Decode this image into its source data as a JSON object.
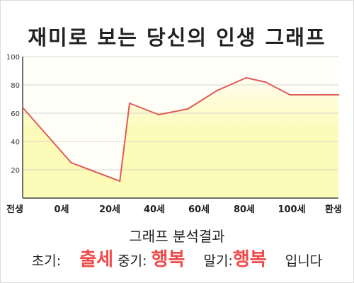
{
  "chart_data": {
    "type": "area",
    "title": "재미로 보는 당신의 인생 그래프",
    "x": [
      0,
      10,
      20,
      22,
      28,
      34,
      40,
      46,
      50,
      55,
      60,
      65
    ],
    "x_tick_labels": [
      "전생",
      "0세",
      "20세",
      "40세",
      "60세",
      "80세",
      "100세",
      "환생"
    ],
    "values": [
      64,
      25,
      12,
      67,
      59,
      63,
      76,
      85,
      82,
      73,
      73,
      73
    ],
    "ylim": [
      0,
      100
    ],
    "y_ticks": [
      20,
      40,
      60,
      80,
      100
    ],
    "grid": "horizontal",
    "colors": {
      "line": "#e05a5a",
      "fill": "#fdfbb8",
      "fill_top": "#fffef0",
      "axis": "#444444",
      "grid": "#c8c8c8"
    }
  },
  "summary": {
    "title": "그래프 분석결과",
    "early_label": "초기:",
    "early_value": "출세",
    "mid_label": "중기:",
    "mid_value": "행복",
    "late_label": "말기:",
    "late_value": "행복",
    "ending": "입니다",
    "highlight_color": "#f04a4a"
  }
}
